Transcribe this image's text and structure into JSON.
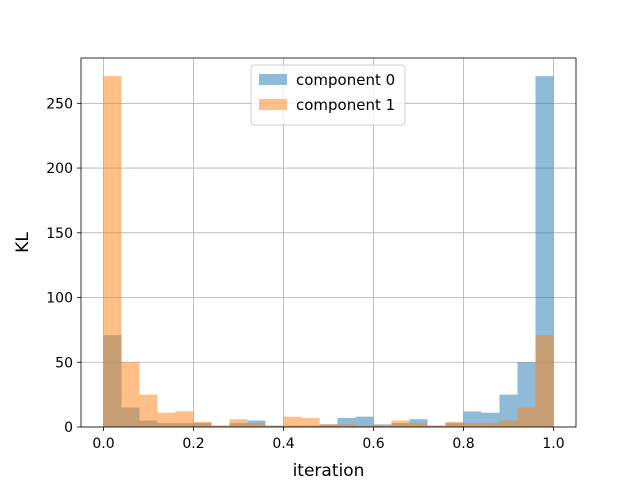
{
  "chart_data": {
    "type": "bar",
    "subtype": "overlapping-histogram",
    "xlabel": "iteration",
    "ylabel": "KL",
    "xlim": [
      -0.05,
      1.05
    ],
    "ylim": [
      0,
      285
    ],
    "xticks": [
      "0.0",
      "0.2",
      "0.4",
      "0.6",
      "0.8",
      "1.0"
    ],
    "yticks": [
      "0",
      "50",
      "100",
      "150",
      "200",
      "250"
    ],
    "grid": true,
    "legend_position": "top-center",
    "bin_edges": [
      0.0,
      0.04,
      0.08,
      0.12,
      0.16,
      0.2,
      0.24,
      0.28,
      0.32,
      0.36,
      0.4,
      0.44,
      0.48,
      0.52,
      0.56,
      0.6,
      0.64,
      0.68,
      0.72,
      0.76,
      0.8,
      0.84,
      0.88,
      0.92,
      0.96,
      1.0
    ],
    "series": [
      {
        "name": "component 0",
        "color": "#1f77b4",
        "alpha": 0.5,
        "values": [
          71,
          15,
          5,
          3,
          3,
          3,
          1,
          3,
          5,
          1,
          1,
          1,
          2,
          7,
          8,
          2,
          3,
          6,
          1,
          3,
          12,
          11,
          25,
          50,
          271
        ]
      },
      {
        "name": "component 1",
        "color": "#ff7f0e",
        "alpha": 0.5,
        "values": [
          271,
          50,
          25,
          11,
          12,
          4,
          1,
          6,
          3,
          1,
          8,
          7,
          2,
          2,
          1,
          1,
          5,
          3,
          1,
          4,
          3,
          3,
          5,
          15,
          71
        ]
      }
    ]
  }
}
